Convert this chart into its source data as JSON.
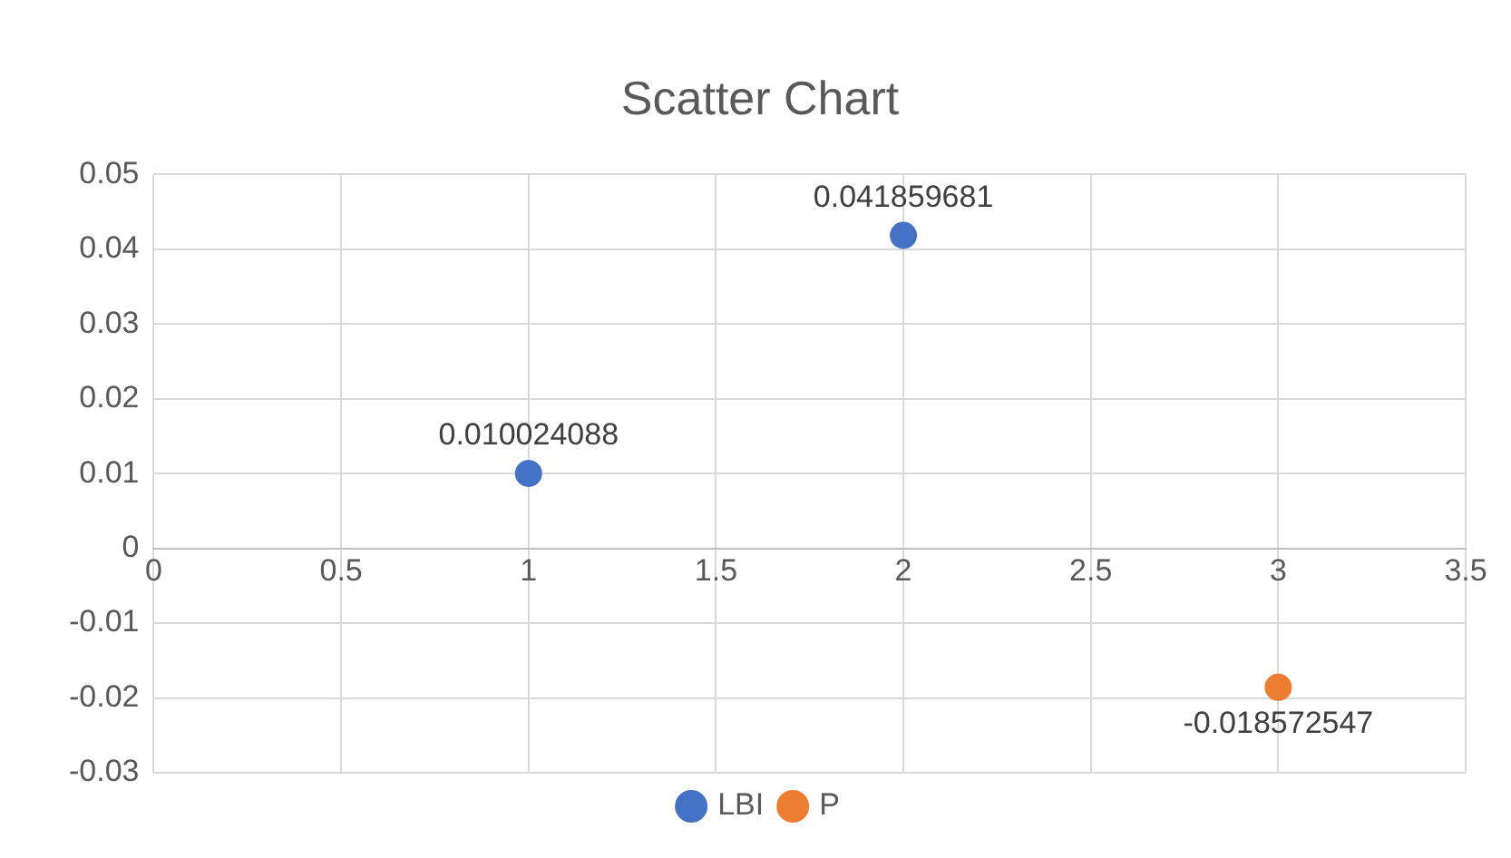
{
  "chart_data": {
    "type": "scatter",
    "title": "Scatter Chart",
    "series": [
      {
        "name": "LBI",
        "color": "#4472c4",
        "x": [
          1,
          2
        ],
        "values": [
          0.010024088,
          0.041859681
        ]
      },
      {
        "name": "P",
        "color": "#ed7d31",
        "x": [
          3
        ],
        "values": [
          -0.018572547
        ]
      }
    ],
    "xlim": [
      0,
      3.5
    ],
    "xticks": [
      0,
      0.5,
      1,
      1.5,
      2,
      2.5,
      3,
      3.5
    ],
    "ylim": [
      -0.03,
      0.05
    ],
    "yticks": [
      -0.03,
      -0.02,
      -0.01,
      0,
      0.01,
      0.02,
      0.03,
      0.04,
      0.05
    ],
    "grid": true,
    "legend": "bottom",
    "data_labels": true,
    "marker": "circle"
  }
}
